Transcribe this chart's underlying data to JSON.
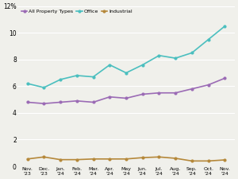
{
  "x_labels": [
    "Nov-23",
    "Dec-23",
    "Jan-24",
    "Feb-24",
    "Mar-24",
    "Apr-24",
    "May-24",
    "Jun-24",
    "Jul-24",
    "Aug-24",
    "Sep-24",
    "Oct-24",
    "Nov-24"
  ],
  "x_labels_display": [
    "Nov.\n'23",
    "Dec.\n'23",
    "Jan.\n'24",
    "Feb.\n'24",
    "Mar.\n'24",
    "Apr.\n'24",
    "May\n'24",
    "Jun.\n'24",
    "Jul.\n'24",
    "Aug.\n'24",
    "Sep.\n'24",
    "Oct.\n'24",
    "Nov.\n'24"
  ],
  "all_property": [
    4.8,
    4.7,
    4.8,
    4.9,
    4.8,
    5.2,
    5.1,
    5.4,
    5.5,
    5.5,
    5.8,
    6.1,
    6.6
  ],
  "office": [
    6.2,
    5.9,
    6.5,
    6.8,
    6.7,
    7.6,
    7.0,
    7.6,
    8.3,
    8.1,
    8.5,
    9.5,
    10.5
  ],
  "industrial": [
    0.55,
    0.7,
    0.5,
    0.5,
    0.55,
    0.55,
    0.55,
    0.65,
    0.7,
    0.6,
    0.4,
    0.4,
    0.48
  ],
  "all_property_color": "#9b6bb5",
  "office_color": "#4bbfbf",
  "industrial_color": "#b5883a",
  "ylim": [
    0,
    12
  ],
  "yticks": [
    0,
    2,
    4,
    6,
    8,
    10,
    12
  ],
  "legend_labels": [
    "All Property Types",
    "Office",
    "Industrial"
  ],
  "background_color": "#f0f0eb",
  "grid_color": "#ffffff",
  "marker": "o",
  "marker_size": 2.0,
  "linewidth": 1.2
}
